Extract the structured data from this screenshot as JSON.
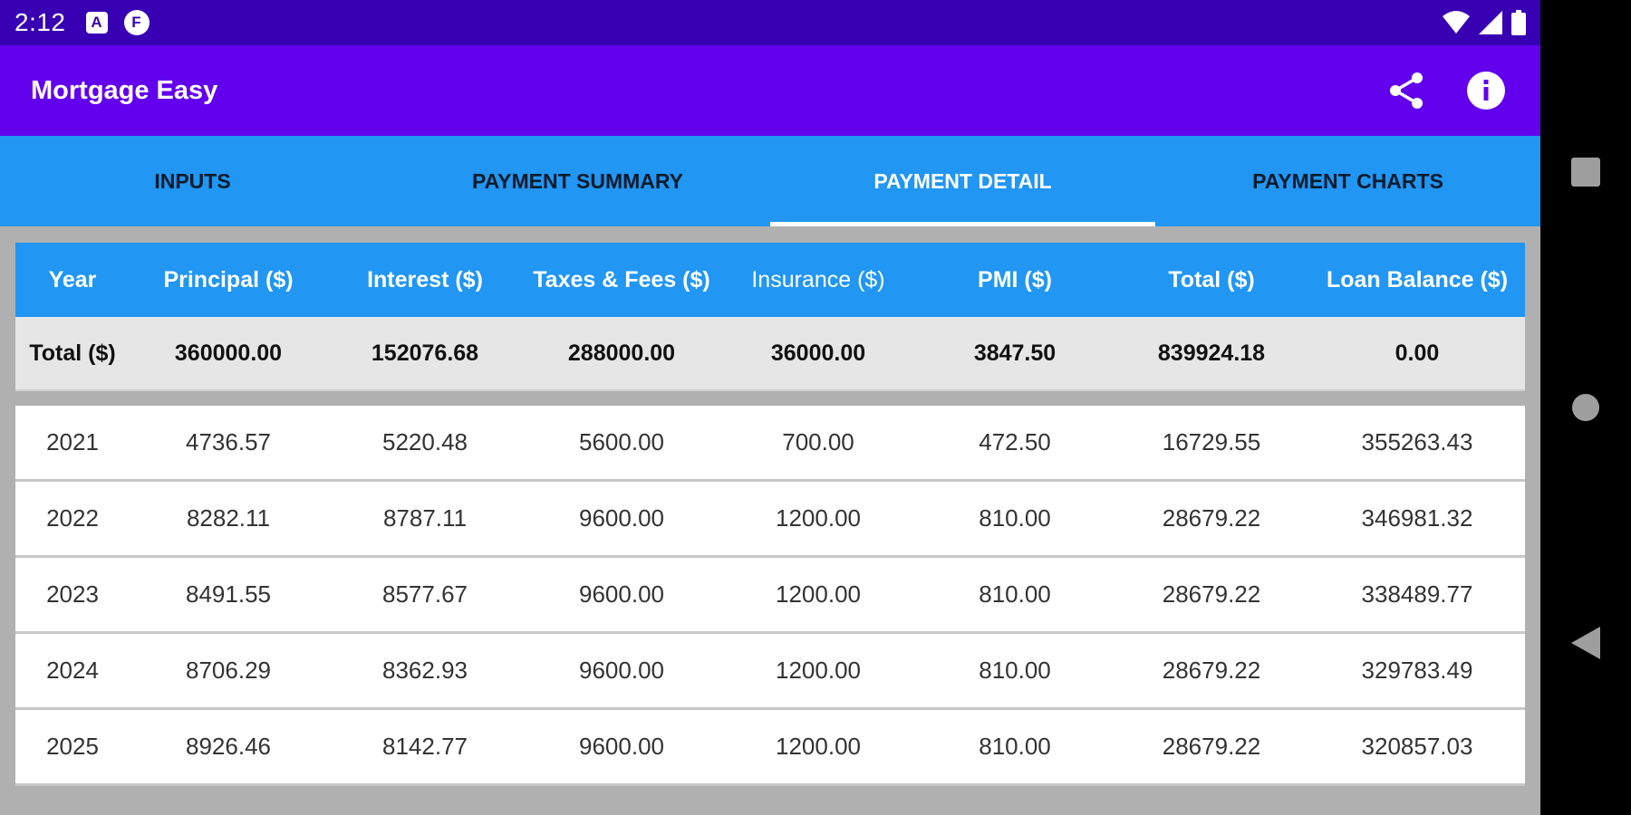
{
  "status_bar": {
    "time": "2:12",
    "icon1_glyph": "A",
    "icon2_glyph": "F",
    "icons": [
      "notification-a-icon",
      "notification-f-icon",
      "wifi-icon",
      "signal-icon",
      "battery-icon"
    ]
  },
  "app_bar": {
    "title": "Mortgage Easy",
    "actions": [
      "share-icon",
      "info-icon"
    ]
  },
  "tabs": [
    {
      "label": "INPUTS",
      "active": false
    },
    {
      "label": "PAYMENT SUMMARY",
      "active": false
    },
    {
      "label": "PAYMENT DETAIL",
      "active": true
    },
    {
      "label": "PAYMENT CHARTS",
      "active": false
    }
  ],
  "table": {
    "headers": [
      "Year",
      "Principal ($)",
      "Interest ($)",
      "Taxes & Fees ($)",
      "Insurance ($)",
      "PMI ($)",
      "Total ($)",
      "Loan Balance ($)"
    ],
    "total_row": [
      "Total ($)",
      "360000.00",
      "152076.68",
      "288000.00",
      "36000.00",
      "3847.50",
      "839924.18",
      "0.00"
    ],
    "rows": [
      [
        "2021",
        "4736.57",
        "5220.48",
        "5600.00",
        "700.00",
        "472.50",
        "16729.55",
        "355263.43"
      ],
      [
        "2022",
        "8282.11",
        "8787.11",
        "9600.00",
        "1200.00",
        "810.00",
        "28679.22",
        "346981.32"
      ],
      [
        "2023",
        "8491.55",
        "8577.67",
        "9600.00",
        "1200.00",
        "810.00",
        "28679.22",
        "338489.77"
      ],
      [
        "2024",
        "8706.29",
        "8362.93",
        "9600.00",
        "1200.00",
        "810.00",
        "28679.22",
        "329783.49"
      ],
      [
        "2025",
        "8926.46",
        "8142.77",
        "9600.00",
        "1200.00",
        "810.00",
        "28679.22",
        "320857.03"
      ]
    ]
  },
  "nav_bar": {
    "buttons": [
      "recents-square-icon",
      "home-circle-icon",
      "back-triangle-icon"
    ]
  },
  "colors": {
    "status_bar": "#3700b3",
    "app_bar": "#6200ee",
    "tab_bar": "#2196f3",
    "table_header": "#2196f3",
    "total_row": "#e6e6e6",
    "content_bg": "#b0b0b0"
  }
}
